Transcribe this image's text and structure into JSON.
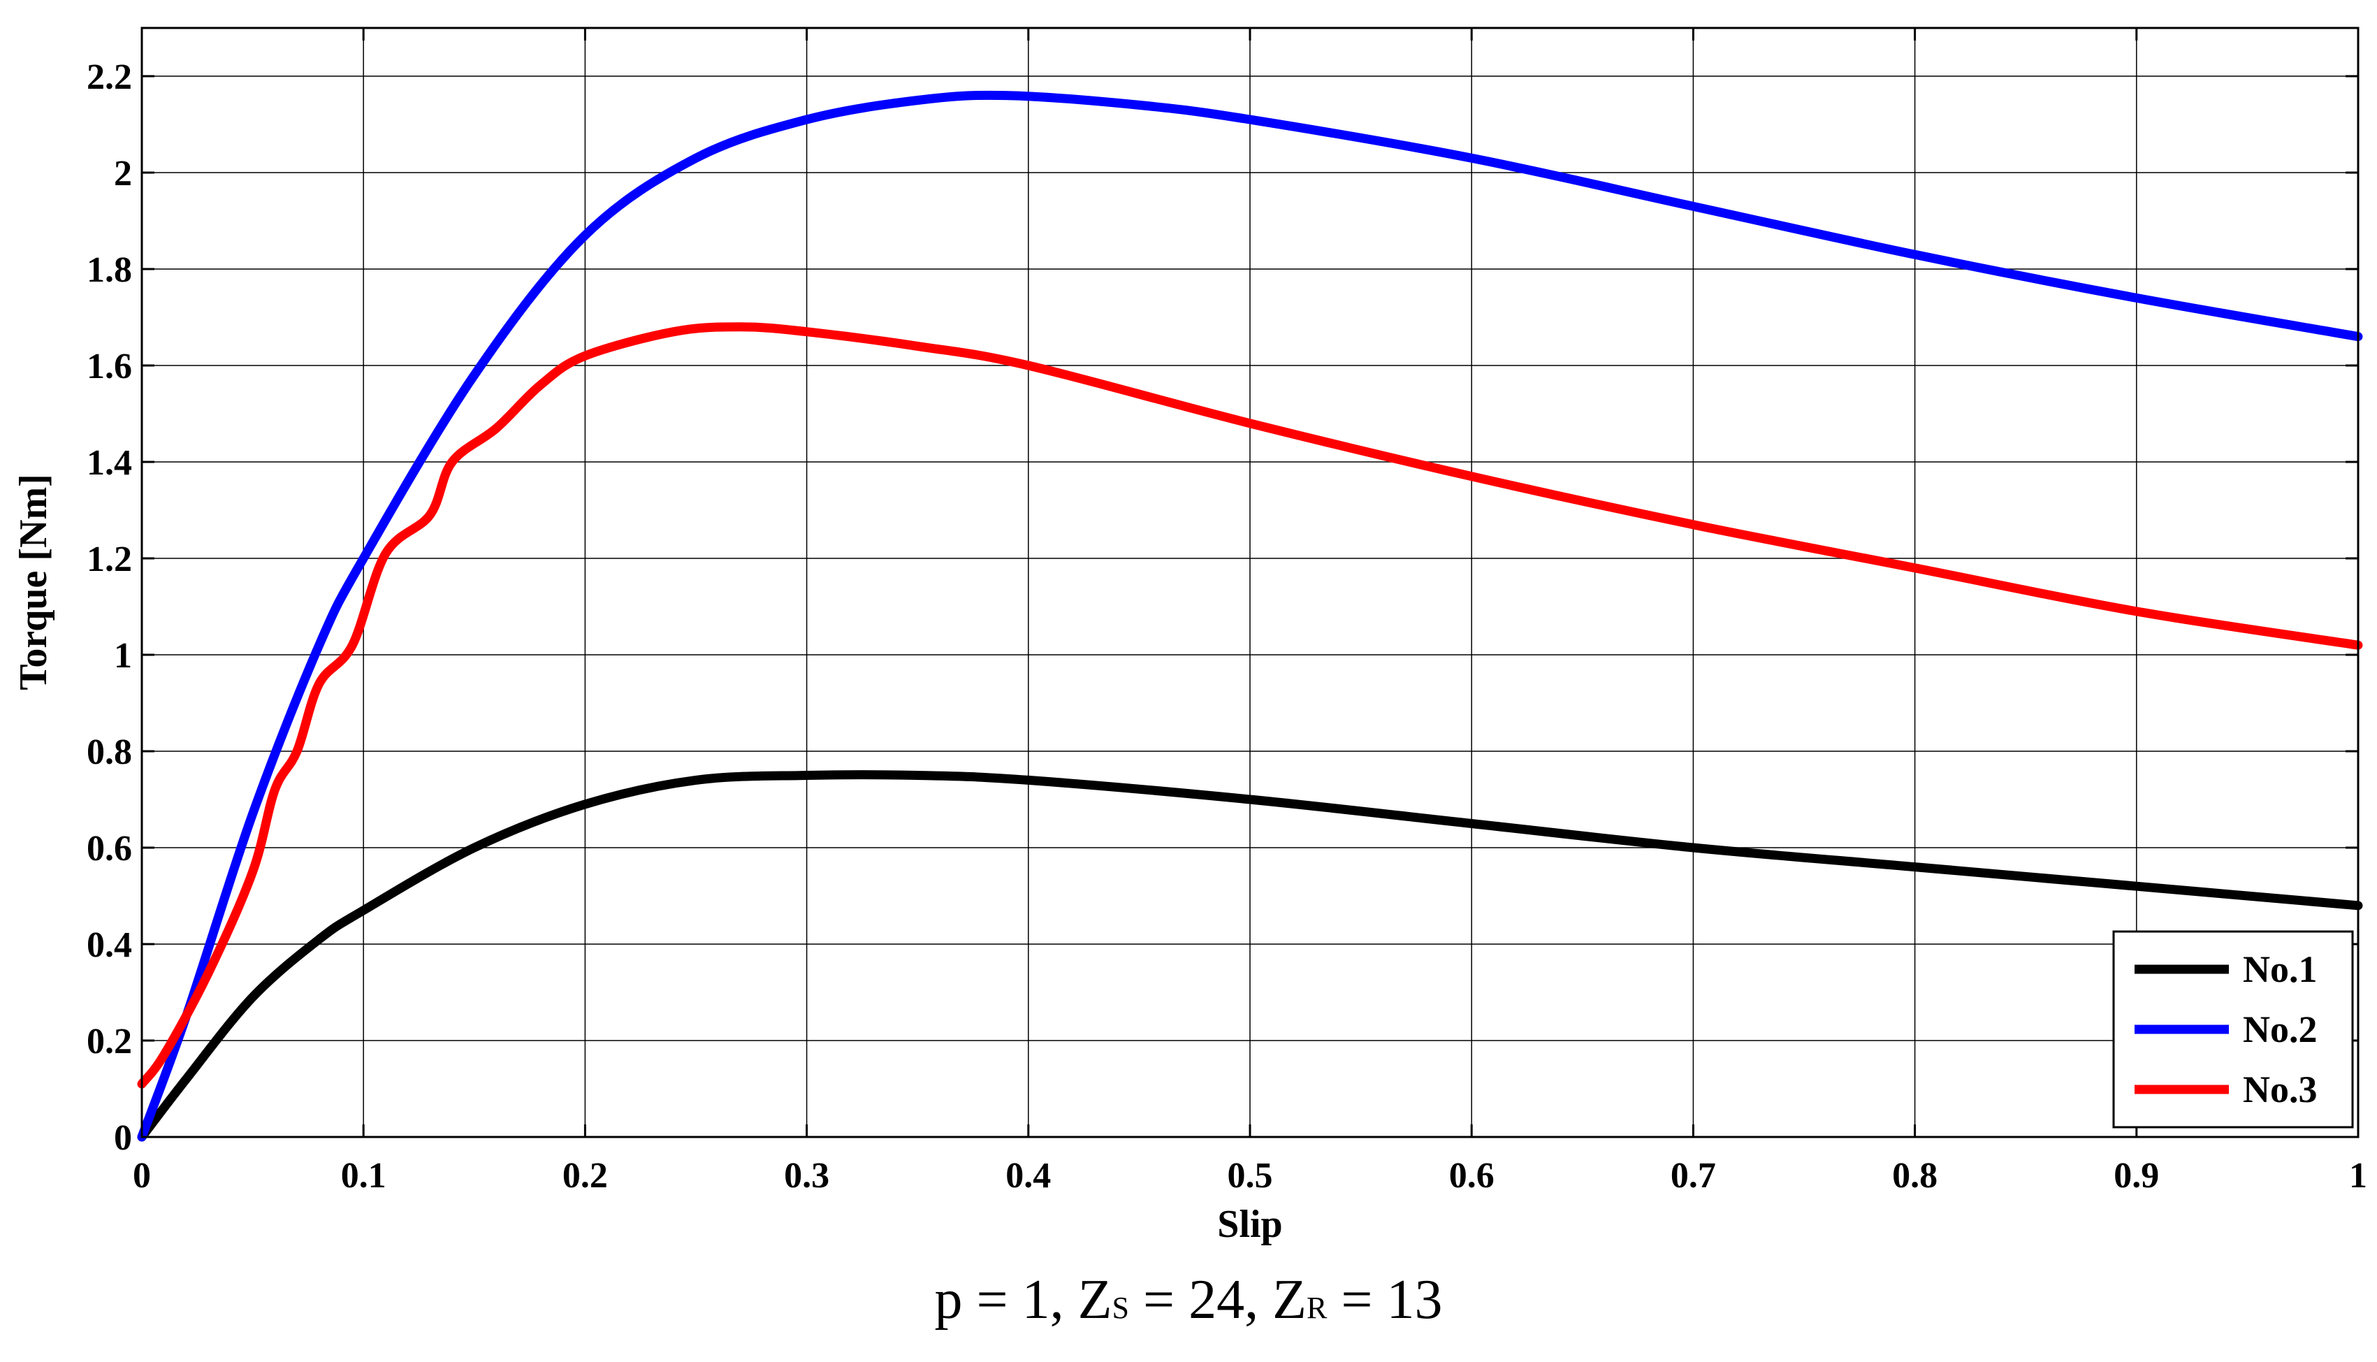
{
  "chart_data": {
    "type": "line",
    "title": "",
    "xlabel": "Slip",
    "ylabel": "Torque [Nm]",
    "xlim": [
      0,
      1
    ],
    "ylim": [
      0,
      2.3
    ],
    "grid": true,
    "legend_position": "bottom-right",
    "x_ticks": [
      "0",
      "0.1",
      "0.2",
      "0.3",
      "0.4",
      "0.5",
      "0.6",
      "0.7",
      "0.8",
      "0.9",
      "1"
    ],
    "y_ticks": [
      "0",
      "0.2",
      "0.4",
      "0.6",
      "0.8",
      "1",
      "1.2",
      "1.4",
      "1.6",
      "1.8",
      "2",
      "2.2"
    ],
    "series": [
      {
        "name": "No.1",
        "color": "#000000",
        "x": [
          0,
          0.02,
          0.05,
          0.08,
          0.1,
          0.15,
          0.2,
          0.25,
          0.3,
          0.35,
          0.4,
          0.5,
          0.6,
          0.7,
          0.8,
          0.9,
          1.0
        ],
        "y": [
          0,
          0.12,
          0.29,
          0.41,
          0.47,
          0.6,
          0.69,
          0.74,
          0.75,
          0.75,
          0.74,
          0.7,
          0.65,
          0.6,
          0.56,
          0.52,
          0.48
        ]
      },
      {
        "name": "No.2",
        "color": "#0000ff",
        "x": [
          0,
          0.02,
          0.05,
          0.08,
          0.1,
          0.15,
          0.2,
          0.25,
          0.3,
          0.35,
          0.39,
          0.45,
          0.5,
          0.6,
          0.7,
          0.8,
          0.9,
          1.0
        ],
        "y": [
          0,
          0.25,
          0.67,
          1.02,
          1.2,
          1.58,
          1.87,
          2.03,
          2.11,
          2.15,
          2.16,
          2.14,
          2.11,
          2.03,
          1.93,
          1.83,
          1.74,
          1.66
        ]
      },
      {
        "name": "No.3",
        "color": "#ff0000",
        "x": [
          0,
          0.01,
          0.03,
          0.05,
          0.06,
          0.07,
          0.08,
          0.095,
          0.11,
          0.13,
          0.14,
          0.16,
          0.18,
          0.2,
          0.24,
          0.27,
          0.3,
          0.35,
          0.4,
          0.5,
          0.6,
          0.7,
          0.8,
          0.9,
          1.0
        ],
        "y": [
          0.11,
          0.17,
          0.34,
          0.55,
          0.72,
          0.8,
          0.94,
          1.02,
          1.21,
          1.29,
          1.4,
          1.47,
          1.56,
          1.62,
          1.67,
          1.68,
          1.67,
          1.64,
          1.6,
          1.48,
          1.37,
          1.27,
          1.18,
          1.09,
          1.02
        ]
      }
    ]
  },
  "caption": {
    "p_label": "p = 1, Z",
    "zs_sub": "S",
    "zs_value": " = 24, Z",
    "zr_sub": "R",
    "zr_value": " = 13"
  }
}
